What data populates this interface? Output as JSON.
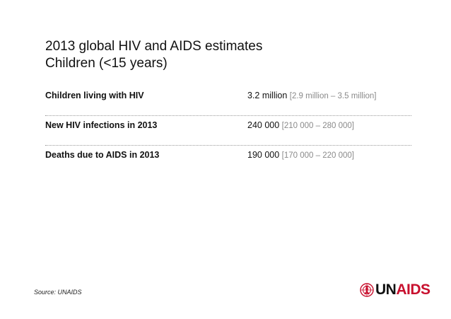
{
  "title": {
    "line1": "2013 global HIV and AIDS estimates",
    "line2": "Children (<15 years)"
  },
  "rows": [
    {
      "label": "Children living with HIV",
      "value": "3.2 million",
      "range": "[2.9 million – 3.5 million]"
    },
    {
      "label": "New HIV infections in 2013",
      "value": "240 000",
      "range": "[210 000 – 280 000]"
    },
    {
      "label": "Deaths due to AIDS in 2013",
      "value": "190 000",
      "range": "[170 000 – 220 000]"
    }
  ],
  "source": "Source: UNAIDS",
  "logo": {
    "part1": "UN",
    "part2": "AIDS",
    "icon": "un-emblem-ribbon-icon"
  },
  "colors": {
    "brand_red": "#c8102e",
    "range_gray": "#8a8a8a"
  }
}
